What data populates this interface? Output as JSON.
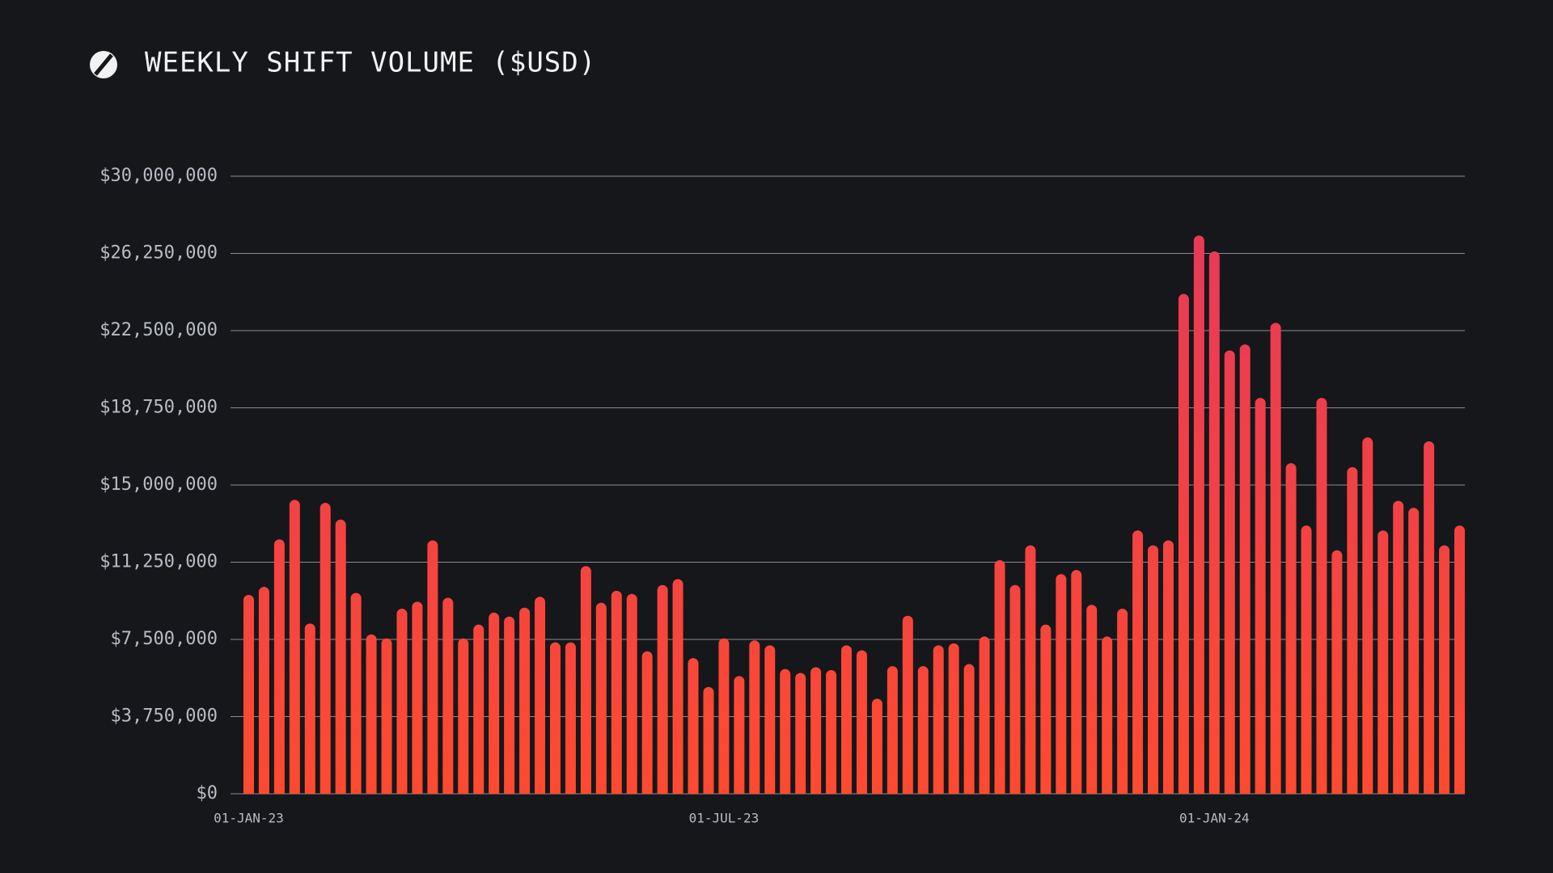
{
  "chart_data": {
    "type": "bar",
    "title": "WEEKLY SHIFT VOLUME ($USD)",
    "categories": [
      "01-JAN-23",
      null,
      null,
      null,
      null,
      null,
      null,
      null,
      null,
      null,
      null,
      null,
      null,
      null,
      null,
      null,
      null,
      null,
      null,
      null,
      null,
      null,
      null,
      null,
      null,
      null,
      null,
      null,
      null,
      null,
      null,
      "01-JUL-23",
      null,
      null,
      null,
      null,
      null,
      null,
      null,
      null,
      null,
      null,
      null,
      null,
      null,
      null,
      null,
      null,
      null,
      null,
      null,
      null,
      null,
      null,
      null,
      null,
      null,
      null,
      null,
      null,
      null,
      null,
      null,
      "01-JAN-24",
      null,
      null,
      null,
      null,
      null,
      null,
      null,
      null,
      null,
      null,
      null,
      null,
      null,
      null,
      null,
      null
    ],
    "values": [
      9660000,
      10050000,
      12360000,
      14280000,
      8270000,
      14130000,
      13320000,
      9760000,
      7740000,
      7550000,
      8990000,
      9330000,
      12310000,
      9520000,
      7550000,
      8220000,
      8800000,
      8610000,
      9040000,
      9570000,
      7360000,
      7360000,
      11060000,
      9280000,
      9860000,
      9710000,
      6920000,
      10140000,
      10430000,
      6590000,
      5190000,
      7550000,
      5720000,
      7450000,
      7210000,
      6060000,
      5870000,
      6150000,
      6010000,
      7210000,
      6970000,
      4620000,
      6200000,
      8650000,
      6200000,
      7210000,
      7310000,
      6300000,
      7640000,
      11350000,
      10140000,
      12070000,
      8220000,
      10670000,
      10870000,
      9180000,
      7640000,
      8990000,
      12790000,
      12070000,
      12310000,
      24280000,
      27120000,
      26350000,
      21540000,
      21830000,
      19230000,
      22880000,
      16060000,
      13030000,
      19230000,
      11830000,
      15870000,
      17310000,
      12790000,
      14230000,
      13890000,
      17120000,
      12070000,
      13030000
    ],
    "colors": [
      "#e5385c",
      "#ff4a2f"
    ],
    "ylim": [
      0,
      30000000
    ],
    "yticks": [
      {
        "value": 0,
        "label": "$0"
      },
      {
        "value": 3750000,
        "label": "$3,750,000"
      },
      {
        "value": 7500000,
        "label": "$7,500,000"
      },
      {
        "value": 11250000,
        "label": "$11,250,000"
      },
      {
        "value": 15000000,
        "label": "$15,000,000"
      },
      {
        "value": 18750000,
        "label": "$18,750,000"
      },
      {
        "value": 22500000,
        "label": "$22,500,000"
      },
      {
        "value": 26250000,
        "label": "$26,250,000"
      },
      {
        "value": 30000000,
        "label": "$30,000,000"
      }
    ],
    "grid": true
  }
}
